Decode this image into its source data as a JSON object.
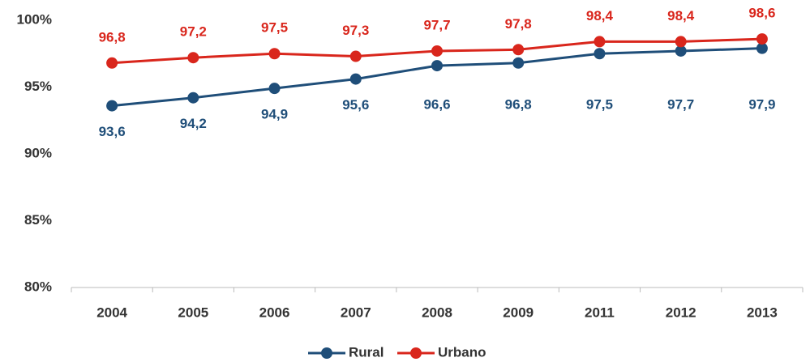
{
  "chart_data": {
    "type": "line",
    "categories": [
      "2004",
      "2005",
      "2006",
      "2007",
      "2008",
      "2009",
      "2011",
      "2012",
      "2013"
    ],
    "series": [
      {
        "name": "Rural",
        "color": "#1f4e79",
        "values": [
          93.6,
          94.2,
          94.9,
          95.6,
          96.6,
          96.8,
          97.5,
          97.7,
          97.9
        ],
        "value_labels": [
          "93,6",
          "94,2",
          "94,9",
          "95,6",
          "96,6",
          "96,8",
          "97,5",
          "97,7",
          "97,9"
        ]
      },
      {
        "name": "Urbano",
        "color": "#d9261c",
        "values": [
          96.8,
          97.2,
          97.5,
          97.3,
          97.7,
          97.8,
          98.4,
          98.4,
          98.6
        ],
        "value_labels": [
          "96,8",
          "97,2",
          "97,5",
          "97,3",
          "97,7",
          "97,8",
          "98,4",
          "98,4",
          "98,6"
        ]
      }
    ],
    "ylim": [
      80,
      100
    ],
    "yticks": [
      {
        "value": 80,
        "label": "80%"
      },
      {
        "value": 85,
        "label": "85%"
      },
      {
        "value": 90,
        "label": "90%"
      },
      {
        "value": 95,
        "label": "95%"
      },
      {
        "value": 100,
        "label": "100%"
      }
    ],
    "grid": false,
    "legend": "bottom"
  }
}
